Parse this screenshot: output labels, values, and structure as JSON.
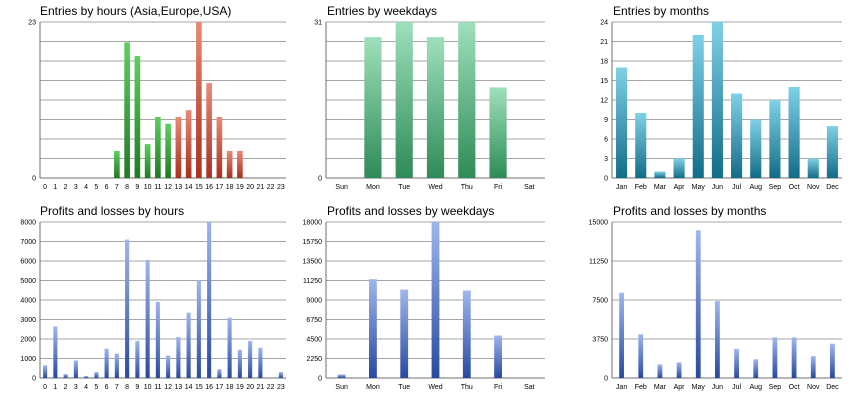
{
  "colors": {
    "green": "#3ea33e",
    "red": "#c9503c",
    "blue": "#5574c4",
    "grid": "#a6a6a6",
    "axis": "#6f6f6f"
  },
  "chart_data": [
    {
      "id": "entries-hours",
      "type": "bar",
      "title": "Entries by hours (Asia,Europe,USA)",
      "categories": [
        "0",
        "1",
        "2",
        "3",
        "4",
        "5",
        "6",
        "7",
        "8",
        "9",
        "10",
        "11",
        "12",
        "13",
        "14",
        "15",
        "16",
        "17",
        "18",
        "19",
        "20",
        "21",
        "22",
        "23"
      ],
      "values": [
        0,
        0,
        0,
        0,
        0,
        0,
        0,
        4,
        20,
        18,
        5,
        9,
        8,
        9,
        10,
        23,
        14,
        9,
        4,
        4,
        0,
        0,
        0,
        0
      ],
      "ylim": [
        0,
        23
      ],
      "yticks": [
        0,
        23
      ],
      "ytick_labels": [
        "0",
        "23"
      ],
      "gridlines": 8,
      "series_colors": [
        "green",
        "green",
        "green",
        "green",
        "green",
        "green",
        "green",
        "green",
        "green",
        "green",
        "green",
        "green",
        "green",
        "red",
        "red",
        "red",
        "red",
        "red",
        "red",
        "red",
        "red",
        "red",
        "red",
        "red"
      ],
      "xlabel": "",
      "ylabel": ""
    },
    {
      "id": "entries-weekdays",
      "type": "bar",
      "title": "Entries by weekdays",
      "categories": [
        "Sun",
        "Mon",
        "Tue",
        "Wed",
        "Thu",
        "Fri",
        "Sat"
      ],
      "values": [
        0,
        28,
        31,
        28,
        31,
        18,
        0
      ],
      "ylim": [
        0,
        31
      ],
      "yticks": [
        0,
        31
      ],
      "ytick_labels": [
        "0",
        "31"
      ],
      "gridlines": 8,
      "series_color": "green",
      "xlabel": "",
      "ylabel": ""
    },
    {
      "id": "entries-months",
      "type": "bar",
      "title": "Entries by months",
      "categories": [
        "Jan",
        "Feb",
        "Mar",
        "Apr",
        "May",
        "Jun",
        "Jul",
        "Aug",
        "Sep",
        "Oct",
        "Nov",
        "Dec"
      ],
      "values": [
        17,
        10,
        1,
        3,
        22,
        24,
        13,
        9,
        12,
        14,
        3,
        8
      ],
      "ylim": [
        0,
        24
      ],
      "yticks": [
        0,
        3,
        6,
        9,
        12,
        15,
        18,
        21,
        24
      ],
      "ytick_labels": [
        "0",
        "3",
        "6",
        "9",
        "12",
        "15",
        "18",
        "21",
        "24"
      ],
      "series_color": "teal",
      "xlabel": "",
      "ylabel": ""
    },
    {
      "id": "profits-hours",
      "type": "bar",
      "title": "Profits and losses by hours",
      "categories": [
        "0",
        "1",
        "2",
        "3",
        "4",
        "5",
        "6",
        "7",
        "8",
        "9",
        "10",
        "11",
        "12",
        "13",
        "14",
        "15",
        "16",
        "17",
        "18",
        "19",
        "20",
        "21",
        "22",
        "23"
      ],
      "values": [
        650,
        2650,
        200,
        900,
        100,
        300,
        1500,
        1250,
        7100,
        1900,
        6050,
        3900,
        1150,
        2100,
        3350,
        5000,
        8000,
        450,
        3100,
        1450,
        1900,
        1550,
        0,
        300
      ],
      "ylim": [
        0,
        8000
      ],
      "yticks": [
        0,
        1000,
        2000,
        3000,
        4000,
        5000,
        6000,
        7000,
        8000
      ],
      "ytick_labels": [
        "0",
        "1000",
        "2000",
        "3000",
        "4000",
        "5000",
        "6000",
        "7000",
        "8000"
      ],
      "series_color": "blue",
      "xlabel": "",
      "ylabel": ""
    },
    {
      "id": "profits-weekdays",
      "type": "bar",
      "title": "Profits and losses by weekdays",
      "categories": [
        "Sun",
        "Mon",
        "Tue",
        "Wed",
        "Thu",
        "Fri",
        "Sat"
      ],
      "values": [
        400,
        11400,
        10200,
        18000,
        10100,
        4900,
        0
      ],
      "ylim": [
        0,
        18000
      ],
      "yticks": [
        0,
        2250,
        4500,
        6750,
        9000,
        11250,
        13500,
        15750,
        18000
      ],
      "ytick_labels": [
        "0",
        "2250",
        "4500",
        "6750",
        "9000",
        "11250",
        "13500",
        "15750",
        "18000"
      ],
      "series_color": "blue",
      "xlabel": "",
      "ylabel": ""
    },
    {
      "id": "profits-months",
      "type": "bar",
      "title": "Profits and losses by months",
      "categories": [
        "Jan",
        "Feb",
        "Mar",
        "Apr",
        "May",
        "Jun",
        "Jul",
        "Aug",
        "Sep",
        "Oct",
        "Nov",
        "Dec"
      ],
      "values": [
        8200,
        4200,
        1300,
        1500,
        14200,
        7400,
        2800,
        1800,
        3900,
        3900,
        2100,
        3300
      ],
      "ylim": [
        0,
        15000
      ],
      "yticks": [
        0,
        3750,
        7500,
        11250,
        15000
      ],
      "ytick_labels": [
        "0",
        "3750",
        "7500",
        "11250",
        "15000"
      ],
      "series_color": "blue",
      "xlabel": "",
      "ylabel": ""
    }
  ]
}
